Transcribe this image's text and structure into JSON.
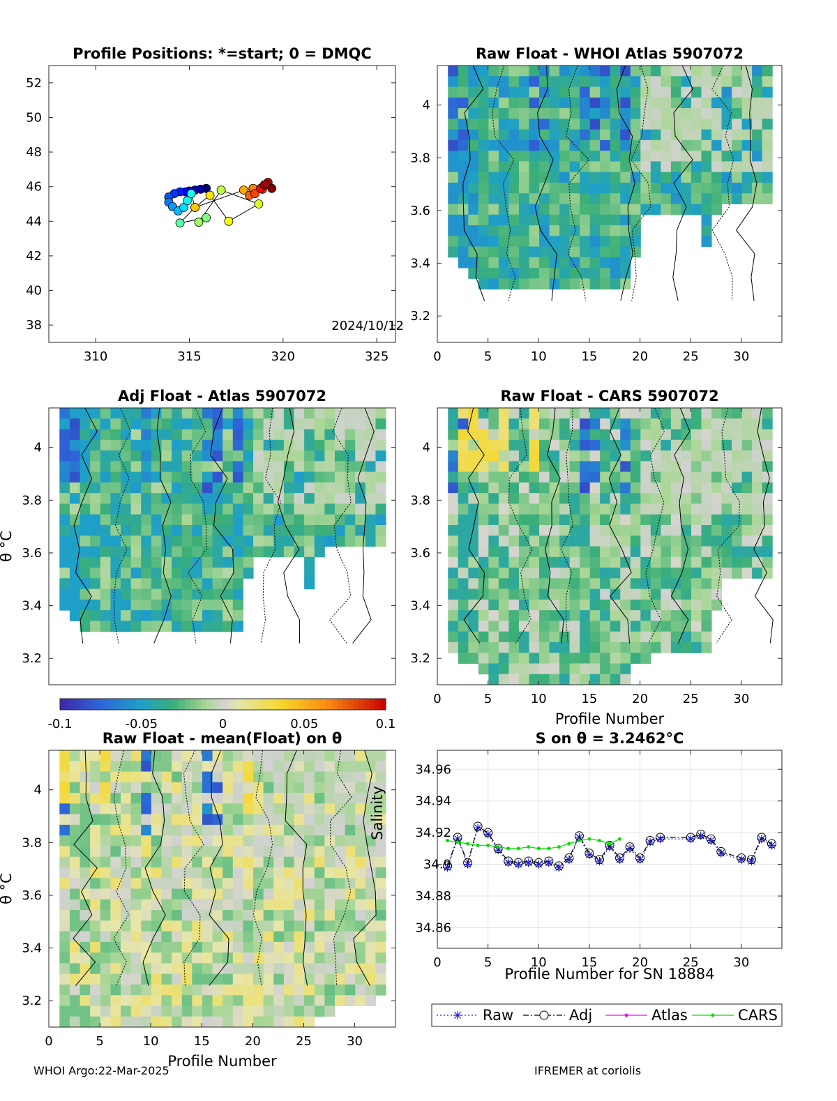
{
  "footer": {
    "left": "WHOI Argo:22-Mar-2025",
    "right": "IFREMER at coriolis"
  },
  "colors": {
    "raw": "#1f1fd6",
    "adj": "#000000",
    "atlas": "#ff00ff",
    "cars": "#00e000"
  },
  "colorbar": {
    "ticks": [
      "-0.1",
      "-0.05",
      "0",
      "0.05",
      "0.1"
    ],
    "range": [
      -0.1,
      0.1
    ]
  },
  "chart_data": [
    {
      "id": "positions",
      "type": "scatter",
      "title": "Profile Positions: *=start; 0 = DMQC",
      "date_label": "2024/10/12",
      "xlim": [
        307.5,
        326
      ],
      "ylim": [
        37,
        53
      ],
      "xticks": [
        "310",
        "315",
        "320",
        "325"
      ],
      "yticks": [
        "38",
        "40",
        "42",
        "44",
        "46",
        "48",
        "50",
        "52"
      ],
      "points": [
        {
          "x": 315.9,
          "y": 45.9,
          "c": 0.0
        },
        {
          "x": 315.6,
          "y": 45.85,
          "c": 0.03
        },
        {
          "x": 315.3,
          "y": 45.8,
          "c": 0.06
        },
        {
          "x": 315.0,
          "y": 45.75,
          "c": 0.09
        },
        {
          "x": 314.8,
          "y": 45.7,
          "c": 0.12
        },
        {
          "x": 314.5,
          "y": 45.7,
          "c": 0.15
        },
        {
          "x": 314.2,
          "y": 45.6,
          "c": 0.18
        },
        {
          "x": 313.9,
          "y": 45.4,
          "c": 0.21
        },
        {
          "x": 313.9,
          "y": 45.1,
          "c": 0.25
        },
        {
          "x": 314.1,
          "y": 44.85,
          "c": 0.28
        },
        {
          "x": 314.4,
          "y": 44.6,
          "c": 0.31
        },
        {
          "x": 314.7,
          "y": 44.8,
          "c": 0.34
        },
        {
          "x": 314.9,
          "y": 45.2,
          "c": 0.37
        },
        {
          "x": 315.1,
          "y": 45.6,
          "c": 0.4
        },
        {
          "x": 315.3,
          "y": 44.8,
          "c": 0.43
        },
        {
          "x": 314.5,
          "y": 43.9,
          "c": 0.46
        },
        {
          "x": 315.9,
          "y": 44.2,
          "c": 0.5
        },
        {
          "x": 315.5,
          "y": 43.95,
          "c": 0.53
        },
        {
          "x": 316.7,
          "y": 45.8,
          "c": 0.56
        },
        {
          "x": 318.7,
          "y": 45.0,
          "c": 0.59
        },
        {
          "x": 317.1,
          "y": 44.0,
          "c": 0.62
        },
        {
          "x": 316.1,
          "y": 45.5,
          "c": 0.65
        },
        {
          "x": 315.3,
          "y": 44.8,
          "c": 0.68
        },
        {
          "x": 317.9,
          "y": 45.8,
          "c": 0.71
        },
        {
          "x": 318.4,
          "y": 45.9,
          "c": 0.75
        },
        {
          "x": 318.2,
          "y": 45.5,
          "c": 0.78
        },
        {
          "x": 318.5,
          "y": 45.6,
          "c": 0.81
        },
        {
          "x": 318.9,
          "y": 45.85,
          "c": 0.84
        },
        {
          "x": 318.8,
          "y": 45.9,
          "c": 0.87
        },
        {
          "x": 319.0,
          "y": 46.1,
          "c": 0.9
        },
        {
          "x": 319.2,
          "y": 46.25,
          "c": 0.93
        },
        {
          "x": 319.1,
          "y": 46.15,
          "c": 0.96
        },
        {
          "x": 319.4,
          "y": 45.9,
          "c": 1.0
        }
      ]
    },
    {
      "id": "whoi",
      "type": "heatmap",
      "title": "Raw Float - WHOI Atlas  5907072",
      "xlim": [
        0,
        34
      ],
      "ylim": [
        3.1,
        4.15
      ],
      "xticks": [
        "0",
        "5",
        "10",
        "15",
        "20",
        "25",
        "30"
      ],
      "yticks": [
        "3.2",
        "3.4",
        "3.6",
        "3.8",
        "4"
      ],
      "ytick_values": [
        3.2,
        3.4,
        3.6,
        3.8,
        4.0
      ],
      "seed": 11,
      "bias": -0.035,
      "bottom_edge": [
        3.4,
        3.36,
        3.32,
        3.3,
        3.3,
        3.3,
        3.3,
        3.28,
        3.28,
        3.28,
        3.28,
        3.28,
        3.28,
        3.28,
        3.28,
        3.28,
        3.28,
        3.28,
        3.4,
        3.58,
        3.58,
        3.56,
        3.56,
        3.56,
        3.56,
        3.46,
        3.56,
        3.6,
        3.6,
        3.6,
        3.6,
        3.6
      ],
      "blue_columns": [
        1,
        2,
        9,
        10,
        14,
        15,
        16,
        18
      ]
    },
    {
      "id": "adj",
      "type": "heatmap",
      "title": "Adj Float - Atlas  5907072",
      "xlim": [
        0,
        34
      ],
      "ylim": [
        3.1,
        4.15
      ],
      "xticks": [],
      "yticks": [
        "3.2",
        "3.4",
        "3.6",
        "3.8",
        "4"
      ],
      "ytick_values": [
        3.2,
        3.4,
        3.6,
        3.8,
        4.0
      ],
      "ylabel": "θ °C",
      "seed": 23,
      "bias": -0.03,
      "bottom_edge": [
        3.36,
        3.32,
        3.3,
        3.3,
        3.3,
        3.3,
        3.3,
        3.3,
        3.3,
        3.3,
        3.3,
        3.3,
        3.3,
        3.3,
        3.3,
        3.3,
        3.3,
        3.3,
        3.5,
        3.58,
        3.58,
        3.58,
        3.58,
        3.58,
        3.46,
        3.56,
        3.6,
        3.6,
        3.6,
        3.6,
        3.6,
        3.6
      ],
      "blue_columns": [
        1,
        2,
        9,
        15,
        16,
        18
      ]
    },
    {
      "id": "cars",
      "type": "heatmap",
      "title": "Raw Float - CARS  5907072",
      "xlim": [
        0,
        34
      ],
      "ylim": [
        3.1,
        4.15
      ],
      "xticks": [
        "0",
        "5",
        "10",
        "15",
        "20",
        "25",
        "30"
      ],
      "yticks": [
        "3.2",
        "3.4",
        "3.6",
        "3.8",
        "4"
      ],
      "ytick_values": [
        3.2,
        3.4,
        3.6,
        3.8,
        4.0
      ],
      "xlabel": "Profile Number",
      "seed": 37,
      "bias": -0.02,
      "bottom_edge": [
        3.2,
        3.16,
        3.16,
        3.14,
        3.1,
        3.1,
        3.1,
        3.1,
        3.1,
        3.1,
        3.1,
        3.1,
        3.1,
        3.1,
        3.1,
        3.1,
        3.1,
        3.1,
        3.16,
        3.16,
        3.2,
        3.2,
        3.2,
        3.2,
        3.2,
        3.2,
        3.38,
        3.5,
        3.5,
        3.5,
        3.5,
        3.5
      ],
      "blue_columns": [
        1,
        2,
        14,
        15,
        18
      ],
      "yellow_columns": [
        2,
        3,
        4,
        5,
        6,
        9
      ]
    },
    {
      "id": "mean",
      "type": "heatmap",
      "title": "Raw Float - mean(Float) on θ",
      "xlim": [
        0,
        34
      ],
      "ylim": [
        3.1,
        4.15
      ],
      "xticks": [
        "0",
        "5",
        "10",
        "15",
        "20",
        "25",
        "30"
      ],
      "yticks": [
        "3.2",
        "3.4",
        "3.6",
        "3.8",
        "4"
      ],
      "ytick_values": [
        3.2,
        3.4,
        3.6,
        3.8,
        4.0
      ],
      "xlabel": "Profile Number",
      "ylabel": "θ °C",
      "seed": 51,
      "bias": 0.0,
      "bottom_edge": [
        3.1,
        3.1,
        3.1,
        3.1,
        3.1,
        3.1,
        3.1,
        3.1,
        3.1,
        3.1,
        3.1,
        3.1,
        3.1,
        3.1,
        3.1,
        3.1,
        3.1,
        3.1,
        3.1,
        3.1,
        3.1,
        3.1,
        3.1,
        3.1,
        3.1,
        3.14,
        3.14,
        3.18,
        3.18,
        3.18,
        3.18,
        3.2
      ],
      "blue_columns": [
        1,
        9,
        15,
        16
      ],
      "yellow_columns": [
        1,
        5,
        19
      ]
    },
    {
      "id": "salinity",
      "type": "line",
      "title": "S on θ = 3.2462°C",
      "xlabel": "Profile Number for SN 18884",
      "ylabel": "Salinity",
      "xlim": [
        0,
        34
      ],
      "ylim": [
        34.847,
        34.972
      ],
      "xticks": [
        "0",
        "5",
        "10",
        "15",
        "20",
        "25",
        "30"
      ],
      "yticks": [
        "34.86",
        "34.88",
        "34.9",
        "34.92",
        "34.94",
        "34.96"
      ],
      "ytick_values": [
        34.86,
        34.88,
        34.9,
        34.92,
        34.94,
        34.96
      ],
      "legend": [
        "Raw",
        "Adj",
        "Atlas",
        "CARS"
      ],
      "series": [
        {
          "name": "Raw",
          "x": [
            1,
            2,
            3,
            4,
            5,
            6,
            7,
            8,
            9,
            10,
            11,
            12,
            13,
            14,
            15,
            16,
            17,
            18,
            19,
            20,
            21,
            22,
            25,
            26,
            27,
            28,
            30,
            31,
            32,
            33
          ],
          "values": [
            34.898,
            34.916,
            34.9,
            34.923,
            34.919,
            34.909,
            34.901,
            34.9,
            34.901,
            34.9,
            34.901,
            34.898,
            34.903,
            34.917,
            34.906,
            34.902,
            34.911,
            34.903,
            34.91,
            34.903,
            34.914,
            34.916,
            34.916,
            34.918,
            34.915,
            34.907,
            34.903,
            34.902,
            34.916,
            34.912
          ]
        },
        {
          "name": "Adj",
          "x": [
            1,
            2,
            3,
            4,
            5,
            6,
            7,
            8,
            9,
            10,
            11,
            12,
            13,
            14,
            15,
            16,
            17,
            18,
            19,
            20,
            21,
            22,
            25,
            26,
            27,
            28,
            30,
            31,
            32,
            33
          ],
          "values": [
            34.899,
            34.917,
            34.901,
            34.924,
            34.92,
            34.91,
            34.902,
            34.901,
            34.902,
            34.901,
            34.902,
            34.899,
            34.904,
            34.918,
            34.907,
            34.903,
            34.912,
            34.904,
            34.911,
            34.904,
            34.915,
            34.917,
            34.917,
            34.919,
            34.916,
            34.908,
            34.904,
            34.903,
            34.917,
            34.913
          ]
        },
        {
          "name": "CARS",
          "x": [
            1,
            2,
            3,
            4,
            5,
            6,
            7,
            8,
            9,
            10,
            11,
            12,
            13,
            14,
            15,
            16,
            17,
            18
          ],
          "values": [
            34.915,
            34.914,
            34.913,
            34.912,
            34.912,
            34.911,
            34.91,
            34.91,
            34.911,
            34.91,
            34.91,
            34.911,
            34.913,
            34.915,
            34.916,
            34.915,
            34.913,
            34.916
          ]
        }
      ]
    }
  ]
}
